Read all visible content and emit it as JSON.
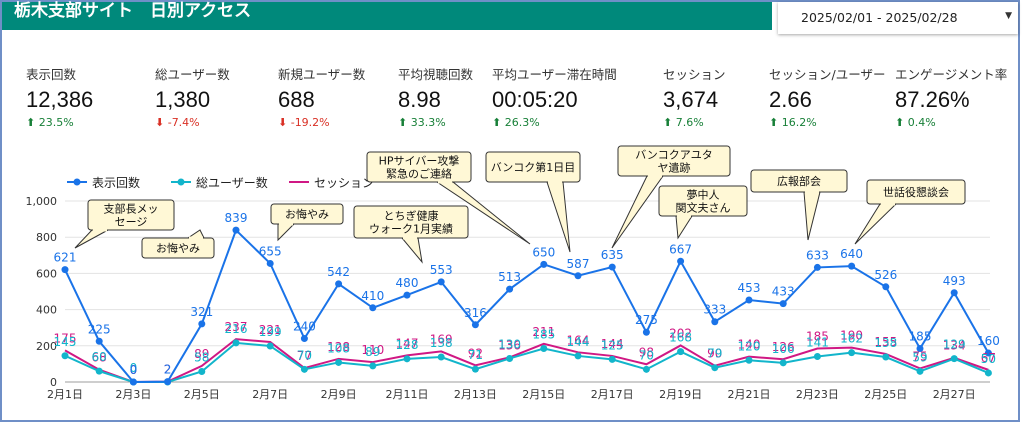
{
  "header": {
    "title": "栃木支部サイト　日別アクセス"
  },
  "date_range": {
    "value": "2025/02/01 - 2025/02/28",
    "caret": "▼"
  },
  "kpis": [
    {
      "label": "表示回数",
      "value": "12,386",
      "change": "23.5%",
      "direction": "up"
    },
    {
      "label": "総ユーザー数",
      "value": "1,380",
      "change": "-7.4%",
      "direction": "down"
    },
    {
      "label": "新規ユーザー数",
      "value": "688",
      "change": "-19.2%",
      "direction": "down"
    },
    {
      "label": "平均視聴回数",
      "value": "8.98",
      "change": "33.3%",
      "direction": "up"
    },
    {
      "label": "平均ユーザー滞在時間",
      "value": "00:05:20",
      "change": "26.3%",
      "direction": "up"
    },
    {
      "label": "セッション",
      "value": "3,674",
      "change": "7.6%",
      "direction": "up"
    },
    {
      "label": "セッション/ユーザー",
      "value": "2.66",
      "change": "16.2%",
      "direction": "up"
    },
    {
      "label": "エンゲージメント率",
      "value": "87.26%",
      "change": "0.4%",
      "direction": "up"
    }
  ],
  "arrows": {
    "up": "⬆",
    "down": "⬇"
  },
  "chart_data": {
    "type": "line",
    "x": [
      "2月1日",
      "2月2日",
      "2月3日",
      "2月4日",
      "2月5日",
      "2月6日",
      "2月7日",
      "2月8日",
      "2月9日",
      "2月10日",
      "2月11日",
      "2月12日",
      "2月13日",
      "2月14日",
      "2月15日",
      "2月16日",
      "2月17日",
      "2月18日",
      "2月19日",
      "2月20日",
      "2月21日",
      "2月22日",
      "2月23日",
      "2月24日",
      "2月25日",
      "2月26日",
      "2月27日",
      "2月28日"
    ],
    "x_tick_labels": [
      "2月1日",
      "2月3日",
      "2月5日",
      "2月7日",
      "2月9日",
      "2月11日",
      "2月13日",
      "2月15日",
      "2月17日",
      "2月19日",
      "2月21日",
      "2月23日",
      "2月25日",
      "2月27日"
    ],
    "ylim": [
      0,
      1000
    ],
    "y_ticks": [
      "0",
      "200",
      "400",
      "600",
      "800",
      "1,000"
    ],
    "grid": true,
    "legend": "top-left",
    "series": [
      {
        "name": "表示回数",
        "color": "#1a73e8",
        "values": [
          621,
          225,
          0,
          2,
          321,
          839,
          655,
          240,
          542,
          410,
          480,
          553,
          316,
          513,
          650,
          587,
          635,
          275,
          667,
          333,
          453,
          433,
          633,
          640,
          526,
          185,
          493,
          160
        ],
        "labels": [
          "621",
          "225",
          "0",
          "2",
          "321",
          "839",
          "655",
          "240",
          "542",
          "410",
          "480",
          "553",
          "316",
          "513",
          "650",
          "587",
          "635",
          "275",
          "667",
          "333",
          "453",
          "433",
          "633",
          "640",
          "526",
          "185",
          "493",
          "160"
        ]
      },
      {
        "name": "総ユーザー数",
        "color": "#12b5cb",
        "values": [
          145,
          60,
          0,
          0,
          58,
          216,
          199,
          70,
          108,
          89,
          128,
          138,
          71,
          130,
          185,
          144,
          125,
          70,
          168,
          79,
          120,
          106,
          141,
          162,
          138,
          59,
          129,
          50
        ],
        "labels": [
          "145",
          "60",
          "0",
          "",
          "58",
          "216",
          "199",
          "70",
          "108",
          "89",
          "128",
          "138",
          "71",
          "130",
          "185",
          "144",
          "125",
          "70",
          "168",
          "79",
          "120",
          "106",
          "141",
          "162",
          "138",
          "59",
          "129",
          "50"
        ]
      },
      {
        "name": "セッション",
        "color": "#d01884",
        "values": [
          175,
          68,
          0,
          2,
          89,
          237,
          221,
          77,
          128,
          110,
          147,
          169,
          92,
          136,
          211,
          164,
          144,
          98,
          202,
          90,
          140,
          126,
          185,
          190,
          155,
          75,
          134,
          67
        ],
        "labels": [
          "175",
          "68",
          "0",
          "2",
          "89",
          "237",
          "221",
          "77",
          "128",
          "110",
          "147",
          "169",
          "92",
          "136",
          "211",
          "164",
          "144",
          "98",
          "202",
          "90",
          "140",
          "126",
          "185",
          "190",
          "155",
          "75",
          "134",
          "67"
        ]
      }
    ],
    "annotations": [
      {
        "lines": [
          "支部長メッ",
          "セージ"
        ],
        "day": 1
      },
      {
        "lines": [
          "お悔やみ"
        ],
        "day": 6
      },
      {
        "lines": [
          "お悔やみ"
        ],
        "day": 7
      },
      {
        "lines": [
          "とちぎ健康",
          "ウォーク1月実績"
        ],
        "day": 12
      },
      {
        "lines": [
          "HPサイバー攻撃",
          "緊急のご連絡"
        ],
        "day": 15
      },
      {
        "lines": [
          "バンコク第1日目"
        ],
        "day": 16
      },
      {
        "lines": [
          "バンコクアユタ",
          "ヤ遺跡"
        ],
        "day": 17
      },
      {
        "lines": [
          "夢中人",
          "関文夫さん"
        ],
        "day": 19
      },
      {
        "lines": [
          "広報部会"
        ],
        "day": 23
      },
      {
        "lines": [
          "世話役懇談会"
        ],
        "day": 24
      }
    ]
  }
}
